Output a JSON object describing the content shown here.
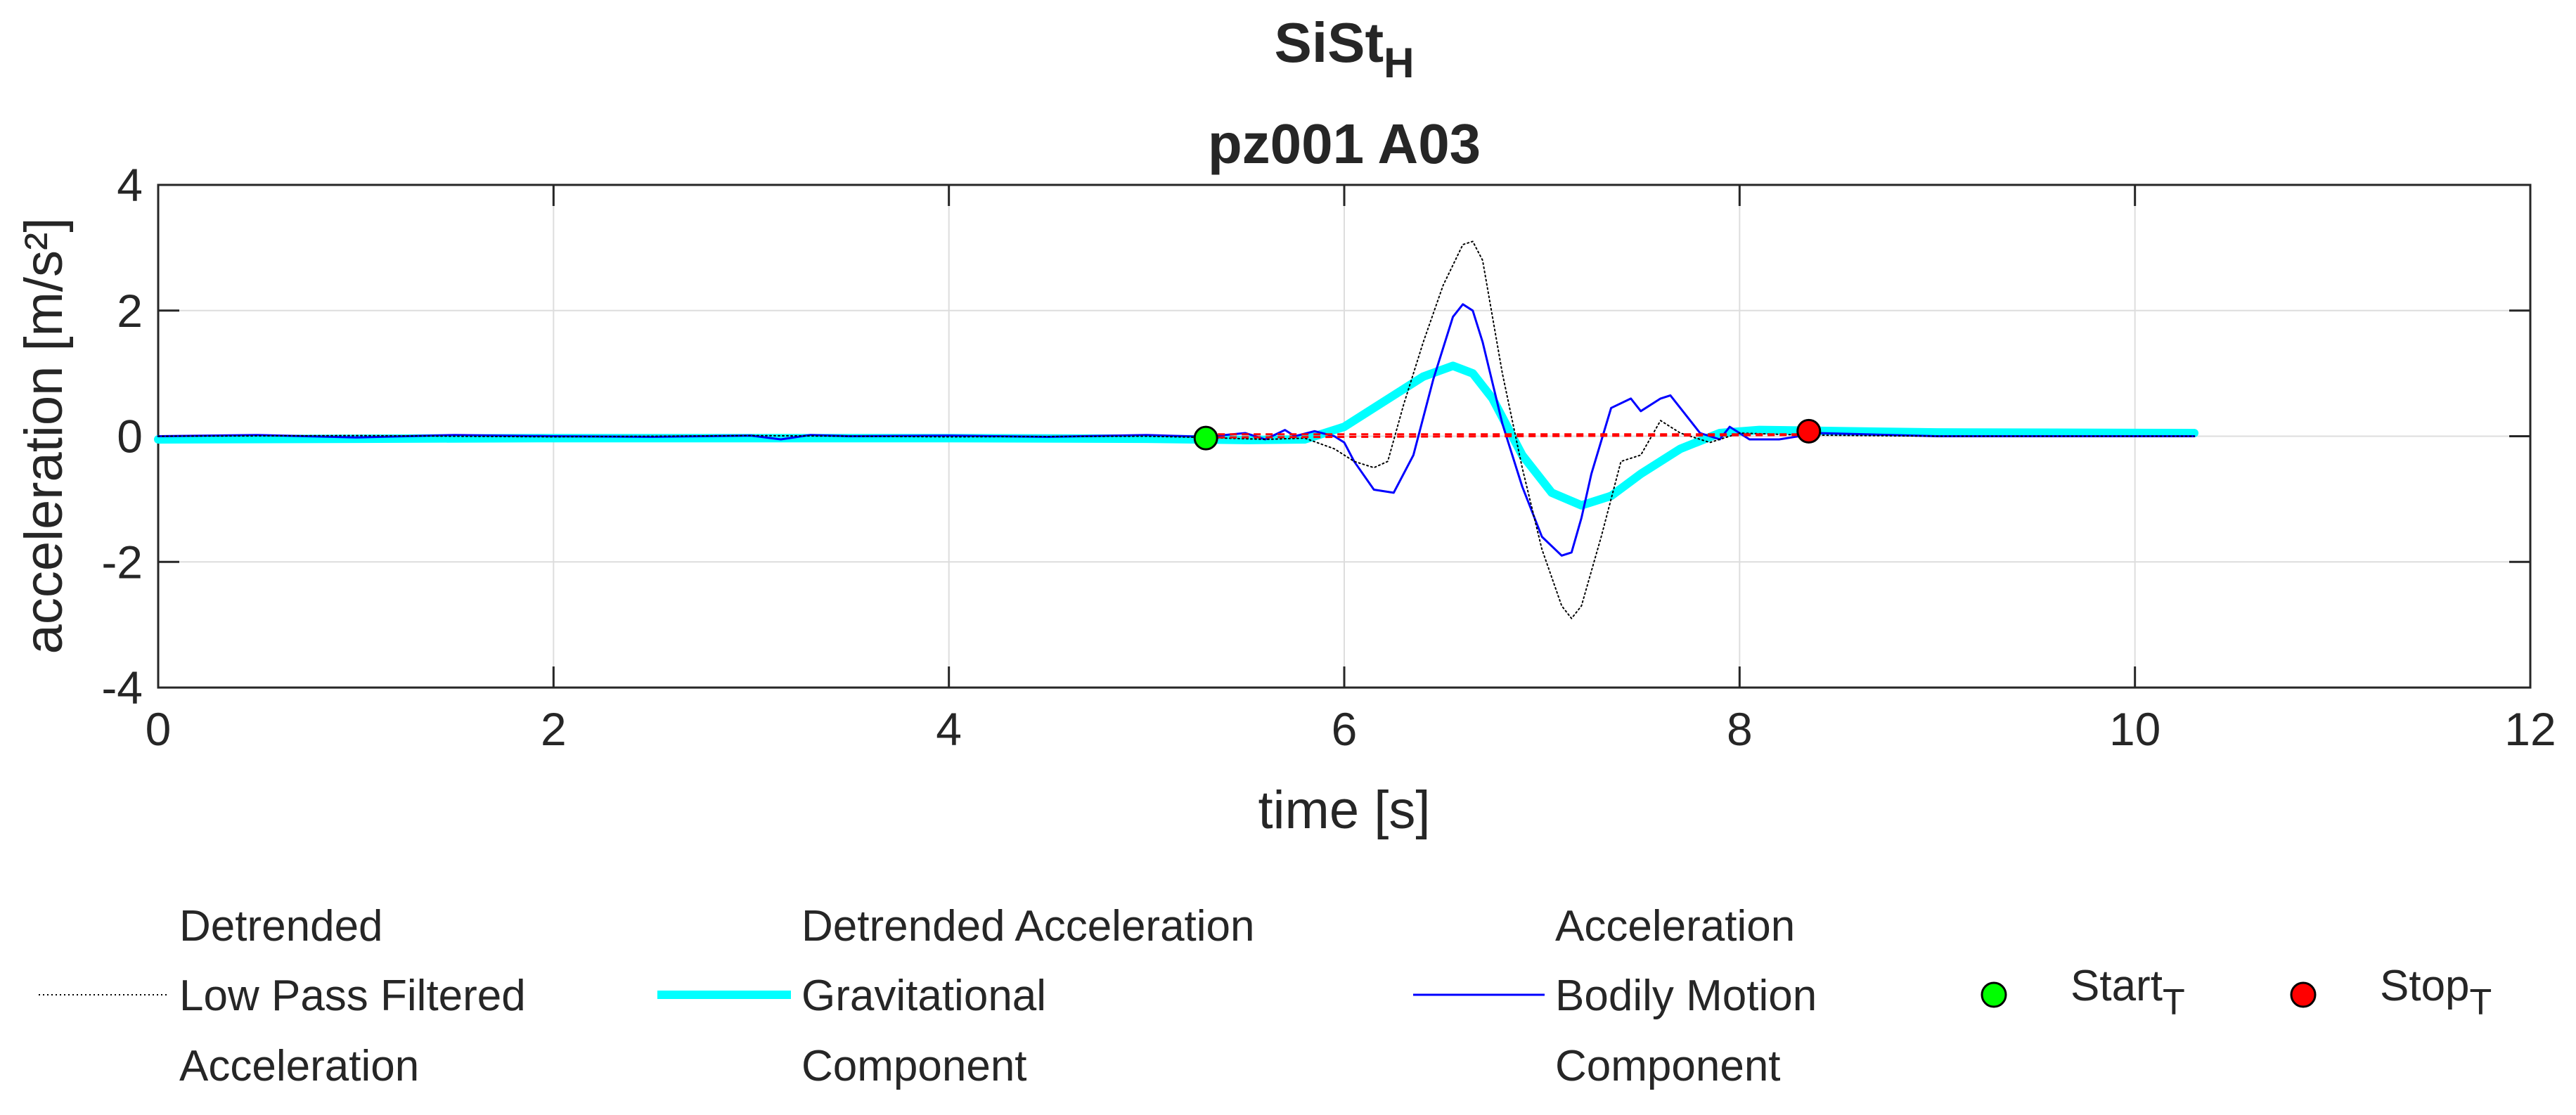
{
  "chart_data": {
    "type": "line",
    "title_main": "SiSt",
    "title_sub": "H",
    "subtitle": "pz001 A03",
    "xlabel": "time [s]",
    "ylabel": "acceleration [m/s²]",
    "xlim": [
      0,
      12
    ],
    "ylim": [
      -4,
      4
    ],
    "xticks": [
      0,
      2,
      4,
      6,
      8,
      10,
      12
    ],
    "yticks": [
      -4,
      -2,
      0,
      2,
      4
    ],
    "xtick_labels": [
      "0",
      "2",
      "4",
      "6",
      "8",
      "10",
      "12"
    ],
    "ytick_labels": [
      "-4",
      "-2",
      "0",
      "2",
      "4"
    ],
    "grid": true,
    "series": [
      {
        "name": "Detrended Low Pass Filtered Acceleration",
        "legend_lines": [
          "Detrended",
          "Low Pass Filtered",
          "Acceleration"
        ],
        "color": "#000000",
        "style": "dotted",
        "x": [
          0,
          1,
          2,
          3,
          4,
          5,
          5.3,
          5.6,
          5.8,
          5.95,
          6.05,
          6.15,
          6.22,
          6.3,
          6.4,
          6.5,
          6.6,
          6.65,
          6.7,
          6.8,
          6.9,
          7.0,
          7.1,
          7.15,
          7.2,
          7.3,
          7.4,
          7.5,
          7.6,
          7.7,
          7.85,
          8.0,
          8.3,
          9,
          10.3
        ],
        "y": [
          0,
          0.01,
          -0.01,
          0.01,
          -0.01,
          0.0,
          -0.02,
          -0.05,
          -0.03,
          -0.2,
          -0.4,
          -0.5,
          -0.4,
          0.5,
          1.5,
          2.4,
          3.05,
          3.1,
          2.8,
          1.0,
          -0.5,
          -1.8,
          -2.7,
          -2.9,
          -2.7,
          -1.6,
          -0.4,
          -0.3,
          0.25,
          0.05,
          -0.1,
          0.05,
          0.02,
          0.0,
          0.0
        ]
      },
      {
        "name": "Detrended Acceleration Gravitational Component",
        "legend_lines": [
          "Detrended Acceleration",
          "Gravitational",
          "Component"
        ],
        "color": "#00ffff",
        "style": "thick",
        "x": [
          0,
          2,
          4,
          5,
          5.5,
          5.8,
          6.0,
          6.2,
          6.4,
          6.55,
          6.65,
          6.75,
          6.9,
          7.05,
          7.2,
          7.35,
          7.5,
          7.7,
          7.9,
          8.1,
          8.5,
          9,
          10.3
        ],
        "y": [
          -0.05,
          -0.03,
          -0.03,
          -0.04,
          -0.06,
          -0.05,
          0.15,
          0.55,
          0.95,
          1.12,
          1.0,
          0.6,
          -0.3,
          -0.9,
          -1.1,
          -0.95,
          -0.6,
          -0.2,
          0.05,
          0.1,
          0.08,
          0.06,
          0.05
        ]
      },
      {
        "name": "Acceleration Bodily Motion Component",
        "legend_lines": [
          "Acceleration",
          "Bodily Motion",
          "Component"
        ],
        "color": "#0000ff",
        "style": "solid",
        "x": [
          0,
          0.5,
          1,
          1.5,
          2,
          2.5,
          3,
          3.15,
          3.3,
          3.5,
          4,
          4.5,
          5,
          5.3,
          5.5,
          5.6,
          5.7,
          5.75,
          5.85,
          5.95,
          6.0,
          6.05,
          6.15,
          6.25,
          6.35,
          6.45,
          6.55,
          6.6,
          6.65,
          6.7,
          6.8,
          6.9,
          7.0,
          7.1,
          7.15,
          7.2,
          7.25,
          7.35,
          7.45,
          7.5,
          7.6,
          7.65,
          7.7,
          7.8,
          7.9,
          7.95,
          8.05,
          8.2,
          8.4,
          9,
          10.3
        ],
        "y": [
          0.0,
          0.02,
          -0.02,
          0.02,
          0.0,
          -0.01,
          0.01,
          -0.05,
          0.02,
          0.0,
          0.01,
          -0.01,
          0.02,
          -0.01,
          0.05,
          -0.05,
          0.1,
          0.0,
          0.08,
          0.0,
          -0.1,
          -0.4,
          -0.85,
          -0.9,
          -0.3,
          0.9,
          1.9,
          2.1,
          2.0,
          1.5,
          0.2,
          -0.8,
          -1.6,
          -1.9,
          -1.85,
          -1.3,
          -0.6,
          0.45,
          0.6,
          0.4,
          0.6,
          0.65,
          0.45,
          0.05,
          -0.05,
          0.15,
          -0.05,
          -0.05,
          0.05,
          0.0,
          0.0
        ]
      }
    ],
    "threshold_lines": [
      {
        "name": "threshold",
        "color": "#ff0000",
        "style": "dashed",
        "x": [
          5.3,
          8.35
        ],
        "y": [
          -0.02,
          0.02
        ]
      },
      {
        "name": "threshold",
        "color": "#ff0000",
        "style": "dashed",
        "x": [
          5.3,
          8.35
        ],
        "y": [
          0.03,
          0.03
        ]
      }
    ],
    "markers": [
      {
        "name": "Start",
        "subscript": "T",
        "x": 5.3,
        "y": -0.03,
        "color": "#00ff00"
      },
      {
        "name": "Stop",
        "subscript": "T",
        "x": 8.35,
        "y": 0.08,
        "color": "#ff0000"
      }
    ],
    "legend_placement": "bottom"
  }
}
